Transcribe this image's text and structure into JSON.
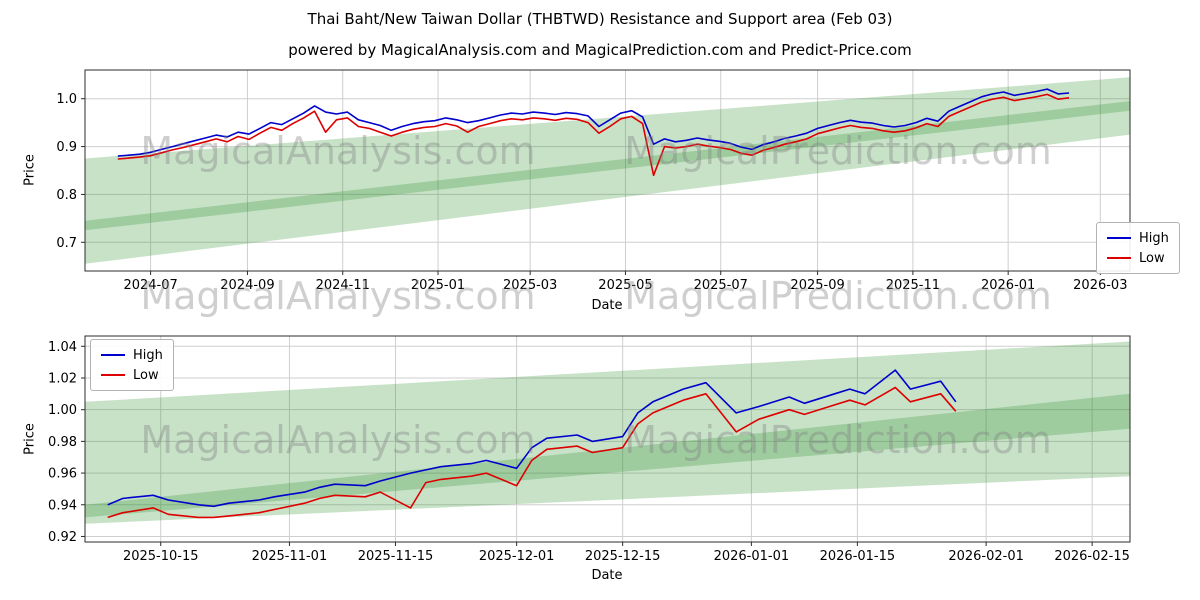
{
  "title": "Thai Baht/New Taiwan Dollar  (THBTWD) Resistance and Support area (Feb 03)",
  "subtitle": "powered by MagicalAnalysis.com and MagicalPrediction.com and Predict-Price.com",
  "watermarks": [
    "MagicalAnalysis.com",
    "MagicalPrediction.com"
  ],
  "axis": {
    "x_label": "Date",
    "y_label": "Price"
  },
  "colors": {
    "high": "#0000cc",
    "low": "#dd0000",
    "band": "#228B22",
    "grid": "#cfcfcf",
    "spine": "#2b2b2b"
  },
  "chart_data": [
    {
      "type": "line",
      "name": "long-term-weekly",
      "xlabel": "Date",
      "ylabel": "Price",
      "x_domain": [
        "2024-05-20",
        "2026-03-20"
      ],
      "x_ticks": [
        {
          "date": "2024-07-01",
          "label": "2024-07"
        },
        {
          "date": "2024-09-01",
          "label": "2024-09"
        },
        {
          "date": "2024-11-01",
          "label": "2024-11"
        },
        {
          "date": "2025-01-01",
          "label": "2025-01"
        },
        {
          "date": "2025-03-01",
          "label": "2025-03"
        },
        {
          "date": "2025-05-01",
          "label": "2025-05"
        },
        {
          "date": "2025-07-01",
          "label": "2025-07"
        },
        {
          "date": "2025-09-01",
          "label": "2025-09"
        },
        {
          "date": "2025-11-01",
          "label": "2025-11"
        },
        {
          "date": "2026-01-01",
          "label": "2026-01"
        },
        {
          "date": "2026-03-01",
          "label": "2026-03"
        }
      ],
      "ylim": [
        0.64,
        1.06
      ],
      "y_ticks": [
        {
          "value": 0.7,
          "label": "0.7"
        },
        {
          "value": 0.8,
          "label": "0.8"
        },
        {
          "value": 0.9,
          "label": "0.9"
        },
        {
          "value": 1.0,
          "label": "1.0"
        }
      ],
      "legend_position": "center-right",
      "dates": [
        "2024-06-10",
        "2024-06-17",
        "2024-06-24",
        "2024-07-01",
        "2024-07-08",
        "2024-07-15",
        "2024-07-22",
        "2024-07-29",
        "2024-08-05",
        "2024-08-12",
        "2024-08-19",
        "2024-08-26",
        "2024-09-02",
        "2024-09-09",
        "2024-09-16",
        "2024-09-23",
        "2024-09-30",
        "2024-10-07",
        "2024-10-14",
        "2024-10-21",
        "2024-10-28",
        "2024-11-04",
        "2024-11-11",
        "2024-11-18",
        "2024-11-25",
        "2024-12-02",
        "2024-12-09",
        "2024-12-16",
        "2024-12-23",
        "2024-12-30",
        "2025-01-06",
        "2025-01-13",
        "2025-01-20",
        "2025-01-27",
        "2025-02-03",
        "2025-02-10",
        "2025-02-17",
        "2025-02-24",
        "2025-03-03",
        "2025-03-10",
        "2025-03-17",
        "2025-03-24",
        "2025-03-31",
        "2025-04-07",
        "2025-04-14",
        "2025-04-21",
        "2025-04-28",
        "2025-05-05",
        "2025-05-12",
        "2025-05-19",
        "2025-05-26",
        "2025-06-02",
        "2025-06-09",
        "2025-06-16",
        "2025-06-23",
        "2025-06-30",
        "2025-07-07",
        "2025-07-14",
        "2025-07-21",
        "2025-07-28",
        "2025-08-04",
        "2025-08-11",
        "2025-08-18",
        "2025-08-25",
        "2025-09-01",
        "2025-09-08",
        "2025-09-15",
        "2025-09-22",
        "2025-09-29",
        "2025-10-06",
        "2025-10-13",
        "2025-10-20",
        "2025-10-27",
        "2025-11-03",
        "2025-11-10",
        "2025-11-17",
        "2025-11-24",
        "2025-12-01",
        "2025-12-08",
        "2025-12-15",
        "2025-12-22",
        "2025-12-29",
        "2026-01-05",
        "2026-01-12",
        "2026-01-19",
        "2026-01-26",
        "2026-02-02",
        "2026-02-09"
      ],
      "series": [
        {
          "name": "High",
          "color_key": "high",
          "values": [
            0.88,
            0.882,
            0.884,
            0.888,
            0.894,
            0.9,
            0.906,
            0.912,
            0.918,
            0.924,
            0.92,
            0.93,
            0.926,
            0.938,
            0.95,
            0.946,
            0.958,
            0.97,
            0.985,
            0.972,
            0.968,
            0.972,
            0.956,
            0.95,
            0.944,
            0.934,
            0.942,
            0.948,
            0.952,
            0.954,
            0.96,
            0.956,
            0.95,
            0.954,
            0.96,
            0.966,
            0.97,
            0.968,
            0.972,
            0.97,
            0.967,
            0.971,
            0.969,
            0.964,
            0.942,
            0.956,
            0.97,
            0.975,
            0.962,
            0.905,
            0.916,
            0.91,
            0.913,
            0.918,
            0.914,
            0.911,
            0.907,
            0.899,
            0.894,
            0.904,
            0.91,
            0.917,
            0.922,
            0.928,
            0.938,
            0.944,
            0.95,
            0.955,
            0.951,
            0.949,
            0.944,
            0.941,
            0.944,
            0.95,
            0.959,
            0.953,
            0.974,
            0.984,
            0.994,
            1.004,
            1.01,
            1.014,
            1.007,
            1.011,
            1.015,
            1.02,
            1.01,
            1.012
          ]
        },
        {
          "name": "Low",
          "color_key": "low",
          "values": [
            0.874,
            0.876,
            0.878,
            0.881,
            0.887,
            0.893,
            0.898,
            0.904,
            0.91,
            0.916,
            0.91,
            0.921,
            0.915,
            0.928,
            0.94,
            0.934,
            0.948,
            0.96,
            0.974,
            0.93,
            0.956,
            0.96,
            0.942,
            0.938,
            0.93,
            0.922,
            0.93,
            0.936,
            0.94,
            0.942,
            0.948,
            0.943,
            0.93,
            0.942,
            0.948,
            0.954,
            0.958,
            0.956,
            0.96,
            0.958,
            0.955,
            0.959,
            0.957,
            0.95,
            0.928,
            0.942,
            0.958,
            0.963,
            0.948,
            0.84,
            0.9,
            0.897,
            0.9,
            0.905,
            0.901,
            0.898,
            0.894,
            0.886,
            0.882,
            0.892,
            0.898,
            0.905,
            0.91,
            0.916,
            0.927,
            0.933,
            0.939,
            0.944,
            0.94,
            0.938,
            0.933,
            0.93,
            0.933,
            0.939,
            0.948,
            0.942,
            0.963,
            0.973,
            0.983,
            0.993,
            0.999,
            1.003,
            0.996,
            1.0,
            1.004,
            1.009,
            0.999,
            1.002
          ]
        }
      ],
      "bands": [
        {
          "left_top": 0.875,
          "right_top": 1.045,
          "left_bottom": 0.725,
          "right_bottom": 0.975
        },
        {
          "left_top": 0.745,
          "right_top": 0.995,
          "left_bottom": 0.655,
          "right_bottom": 0.925
        }
      ]
    },
    {
      "type": "line",
      "name": "short-term-daily",
      "xlabel": "Date",
      "ylabel": "Price",
      "x_domain": [
        "2025-10-05",
        "2026-02-20"
      ],
      "x_ticks": [
        {
          "date": "2025-10-15",
          "label": "2025-10-15"
        },
        {
          "date": "2025-11-01",
          "label": "2025-11-01"
        },
        {
          "date": "2025-11-15",
          "label": "2025-11-15"
        },
        {
          "date": "2025-12-01",
          "label": "2025-12-01"
        },
        {
          "date": "2025-12-15",
          "label": "2025-12-15"
        },
        {
          "date": "2026-01-01",
          "label": "2026-01-01"
        },
        {
          "date": "2026-01-15",
          "label": "2026-01-15"
        },
        {
          "date": "2026-02-01",
          "label": "2026-02-01"
        },
        {
          "date": "2026-02-15",
          "label": "2026-02-15"
        }
      ],
      "ylim": [
        0.9165,
        1.0465
      ],
      "y_ticks": [
        {
          "value": 0.92,
          "label": "0.92"
        },
        {
          "value": 0.94,
          "label": "0.94"
        },
        {
          "value": 0.96,
          "label": "0.96"
        },
        {
          "value": 0.98,
          "label": "0.98"
        },
        {
          "value": 1.0,
          "label": "1.00"
        },
        {
          "value": 1.02,
          "label": "1.02"
        },
        {
          "value": 1.04,
          "label": "1.04"
        }
      ],
      "legend_position": "top-left",
      "dates": [
        "2025-10-08",
        "2025-10-10",
        "2025-10-14",
        "2025-10-16",
        "2025-10-20",
        "2025-10-22",
        "2025-10-24",
        "2025-10-28",
        "2025-10-30",
        "2025-11-03",
        "2025-11-05",
        "2025-11-07",
        "2025-11-11",
        "2025-11-13",
        "2025-11-17",
        "2025-11-19",
        "2025-11-21",
        "2025-11-25",
        "2025-11-27",
        "2025-12-01",
        "2025-12-03",
        "2025-12-05",
        "2025-12-09",
        "2025-12-11",
        "2025-12-15",
        "2025-12-17",
        "2025-12-19",
        "2025-12-23",
        "2025-12-26",
        "2025-12-30",
        "2026-01-02",
        "2026-01-06",
        "2026-01-08",
        "2026-01-12",
        "2026-01-14",
        "2026-01-16",
        "2026-01-20",
        "2026-01-22",
        "2026-01-26",
        "2026-01-28"
      ],
      "series": [
        {
          "name": "High",
          "color_key": "high",
          "values": [
            0.94,
            0.944,
            0.946,
            0.943,
            0.94,
            0.939,
            0.941,
            0.943,
            0.945,
            0.948,
            0.951,
            0.953,
            0.952,
            0.955,
            0.96,
            0.962,
            0.964,
            0.966,
            0.968,
            0.963,
            0.976,
            0.982,
            0.984,
            0.98,
            0.983,
            0.998,
            1.005,
            1.013,
            1.017,
            0.998,
            1.002,
            1.008,
            1.004,
            1.01,
            1.013,
            1.01,
            1.025,
            1.013,
            1.018,
            1.005
          ]
        },
        {
          "name": "Low",
          "color_key": "low",
          "values": [
            0.932,
            0.935,
            0.938,
            0.934,
            0.932,
            0.932,
            0.933,
            0.935,
            0.937,
            0.941,
            0.944,
            0.946,
            0.945,
            0.948,
            0.938,
            0.954,
            0.956,
            0.958,
            0.96,
            0.952,
            0.968,
            0.975,
            0.977,
            0.973,
            0.976,
            0.991,
            0.998,
            1.006,
            1.01,
            0.986,
            0.994,
            1.0,
            0.997,
            1.003,
            1.006,
            1.003,
            1.014,
            1.005,
            1.01,
            0.999
          ]
        }
      ],
      "bands": [
        {
          "left_top": 1.005,
          "right_top": 1.043,
          "left_bottom": 0.932,
          "right_bottom": 0.988
        },
        {
          "left_top": 0.94,
          "right_top": 1.01,
          "left_bottom": 0.928,
          "right_bottom": 0.958
        }
      ]
    }
  ]
}
